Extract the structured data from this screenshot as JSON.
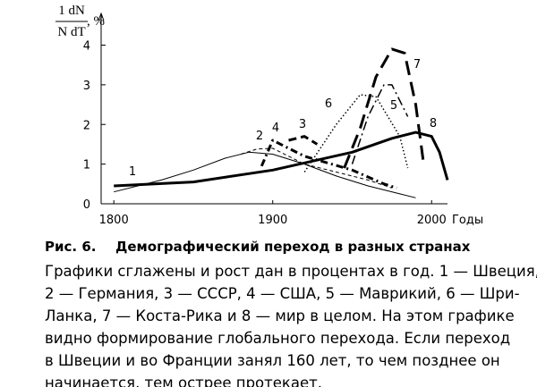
{
  "chart_data": {
    "type": "line",
    "y_label": {
      "numerator": "1 dN",
      "denominator": "N dT",
      "unit": ", %"
    },
    "x_unit": "Годы",
    "xlim": [
      1792,
      2010
    ],
    "ylim": [
      0,
      4.8
    ],
    "xticks": [
      1800,
      1900,
      2000
    ],
    "yticks": [
      0,
      1,
      2,
      3,
      4
    ],
    "series": [
      {
        "name": "1",
        "color": "#000",
        "x": [
          1800,
          1830,
          1850,
          1870,
          1885,
          1900,
          1920,
          1940,
          1960,
          1980,
          1990
        ],
        "values": [
          0.3,
          0.6,
          0.85,
          1.15,
          1.3,
          1.25,
          1.0,
          0.7,
          0.45,
          0.25,
          0.15
        ]
      },
      {
        "name": "2",
        "color": "#000",
        "x": [
          1880,
          1890,
          1900,
          1920,
          1940,
          1960,
          1975
        ],
        "values": [
          1.25,
          1.38,
          1.4,
          1.0,
          0.8,
          0.6,
          0.4
        ]
      },
      {
        "name": "3",
        "color": "#000",
        "x": [
          1910,
          1920,
          1928
        ],
        "values": [
          1.6,
          1.7,
          1.5
        ]
      },
      {
        "name": "4",
        "color": "#000",
        "x": [
          1893,
          1900,
          1920,
          1950,
          1970,
          1978
        ],
        "values": [
          0.95,
          1.6,
          1.2,
          0.85,
          0.5,
          0.4
        ]
      },
      {
        "name": "5",
        "color": "#000",
        "x": [
          1950,
          1960,
          1970,
          1975,
          1985
        ],
        "values": [
          1.0,
          2.2,
          3.0,
          3.0,
          2.2
        ]
      },
      {
        "name": "6",
        "color": "#000",
        "x": [
          1920,
          1940,
          1955,
          1965,
          1980,
          1985
        ],
        "values": [
          0.8,
          2.0,
          2.75,
          2.7,
          1.7,
          0.9
        ]
      },
      {
        "name": "7",
        "color": "#000",
        "x": [
          1945,
          1955,
          1965,
          1975,
          1983,
          1990,
          1995
        ],
        "values": [
          0.9,
          1.9,
          3.2,
          3.9,
          3.8,
          2.5,
          1.0
        ]
      },
      {
        "name": "8",
        "color": "#000",
        "x": [
          1800,
          1850,
          1900,
          1950,
          1975,
          1990,
          2000,
          2005,
          2010
        ],
        "values": [
          0.45,
          0.55,
          0.85,
          1.3,
          1.65,
          1.8,
          1.7,
          1.3,
          0.6
        ]
      }
    ]
  },
  "caption": {
    "number": "Рис. 6.",
    "title": "Демографический переход в разных странах"
  },
  "text_lines": [
    "Графики сглажены и рост дан в процентах в год. 1 — Швеция,",
    "2 — Германия, 3 — СССР, 4 — США, 5 — Маврикий, 6 — Шри-",
    "Ланка, 7 — Коста-Рика и 8 — мир в целом. На этом графике",
    "видно формирование глобального перехода. Если переход",
    "в Швеции и во Франции занял 160 лет, то чем позднее он",
    "начинается, тем острее протекает."
  ]
}
